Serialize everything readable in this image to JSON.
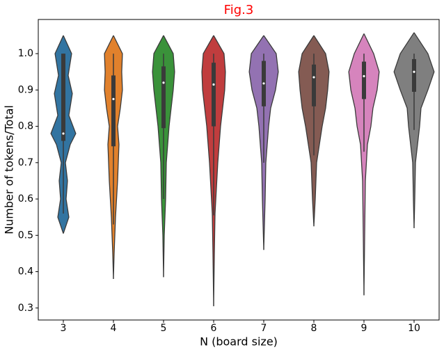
{
  "chart_data": {
    "type": "violin",
    "title": "Fig.3",
    "xlabel": "N (board size)",
    "ylabel": "Number of tokens/Total",
    "categories": [
      "3",
      "4",
      "5",
      "6",
      "7",
      "8",
      "9",
      "10"
    ],
    "ylim": [
      0.267,
      1.094
    ],
    "yticks": [
      0.3,
      0.4,
      0.5,
      0.6,
      0.7,
      0.8,
      0.9,
      {
        "value": 1,
        "label": "1.0"
      }
    ],
    "series": [
      {
        "color": "#3274a1",
        "density_y": [
          0.505,
          0.55,
          0.6,
          0.65,
          0.7,
          0.75,
          0.78,
          0.83,
          0.89,
          0.94,
          1.0,
          1.05
        ],
        "density": [
          0,
          8,
          4,
          6,
          3,
          10,
          18,
          8,
          13,
          7,
          12,
          0
        ],
        "whisker_low": 0.56,
        "q1": 0.76,
        "median": 0.78,
        "q3": 1.0,
        "whisker_high": 1.0
      },
      {
        "color": "#e1812c",
        "density_y": [
          0.38,
          0.45,
          0.55,
          0.65,
          0.75,
          0.8,
          0.85,
          0.9,
          0.95,
          1.0,
          1.05
        ],
        "density": [
          0,
          1,
          3,
          6,
          8,
          6,
          10,
          13,
          12,
          13,
          0
        ],
        "whisker_low": 0.53,
        "q1": 0.745,
        "median": 0.875,
        "q3": 0.94,
        "whisker_high": 1.0
      },
      {
        "color": "#3a923a",
        "density_y": [
          0.385,
          0.5,
          0.6,
          0.7,
          0.8,
          0.85,
          0.9,
          0.95,
          1.0,
          1.05
        ],
        "density": [
          0,
          1,
          3,
          4,
          8,
          11,
          14,
          16,
          14,
          0
        ],
        "whisker_low": 0.6,
        "q1": 0.795,
        "median": 0.92,
        "q3": 0.965,
        "whisker_high": 1.0
      },
      {
        "color": "#c03d3e",
        "density_y": [
          0.305,
          0.45,
          0.56,
          0.7,
          0.8,
          0.9,
          0.95,
          1.0,
          1.05
        ],
        "density": [
          0,
          1,
          2,
          6,
          10,
          16,
          17,
          15,
          0
        ],
        "whisker_low": 0.555,
        "q1": 0.8,
        "median": 0.915,
        "q3": 0.975,
        "whisker_high": 1.0
      },
      {
        "color": "#9372b2",
        "density_y": [
          0.46,
          0.6,
          0.7,
          0.8,
          0.85,
          0.9,
          0.95,
          1.0,
          1.05
        ],
        "density": [
          0,
          2,
          3,
          7,
          10,
          17,
          21,
          18,
          0
        ],
        "whisker_low": 0.7,
        "q1": 0.855,
        "median": 0.918,
        "q3": 0.98,
        "whisker_high": 1.0
      },
      {
        "color": "#845b53",
        "density_y": [
          0.525,
          0.6,
          0.7,
          0.8,
          0.85,
          0.9,
          0.95,
          1.0,
          1.05
        ],
        "density": [
          0,
          2,
          4,
          12,
          17,
          20,
          22,
          17,
          0
        ],
        "whisker_low": 0.72,
        "q1": 0.855,
        "median": 0.935,
        "q3": 0.97,
        "whisker_high": 1.0
      },
      {
        "color": "#d684bd",
        "density_y": [
          0.335,
          0.5,
          0.65,
          0.75,
          0.8,
          0.85,
          0.9,
          0.95,
          1.0,
          1.055
        ],
        "density": [
          0,
          1,
          2,
          5,
          10,
          13,
          19,
          22,
          14,
          0
        ],
        "whisker_low": 0.73,
        "q1": 0.875,
        "median": 0.938,
        "q3": 0.978,
        "whisker_high": 1.0
      },
      {
        "color": "#7f7f7f",
        "density_y": [
          0.52,
          0.6,
          0.7,
          0.8,
          0.85,
          0.9,
          0.95,
          1.0,
          1.058
        ],
        "density": [
          0,
          1,
          2,
          8,
          10,
          20,
          29,
          20,
          0
        ],
        "whisker_low": 0.79,
        "q1": 0.895,
        "median": 0.95,
        "q3": 0.985,
        "whisker_high": 1.0
      }
    ]
  }
}
